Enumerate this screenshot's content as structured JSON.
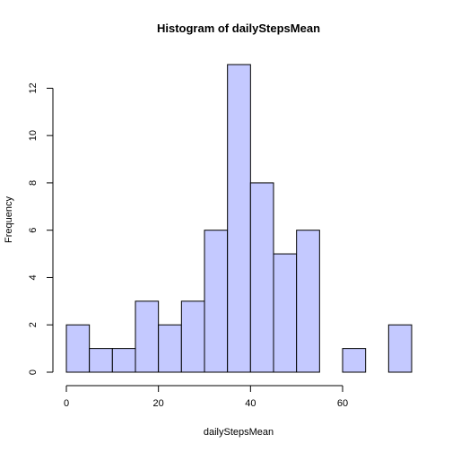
{
  "chart_data": {
    "type": "bar",
    "title": "Histogram of dailyStepsMean",
    "xlabel": "dailyStepsMean",
    "ylabel": "Frequency",
    "bins": [
      {
        "start": 0,
        "end": 5,
        "count": 2
      },
      {
        "start": 5,
        "end": 10,
        "count": 1
      },
      {
        "start": 10,
        "end": 15,
        "count": 1
      },
      {
        "start": 15,
        "end": 20,
        "count": 3
      },
      {
        "start": 20,
        "end": 25,
        "count": 2
      },
      {
        "start": 25,
        "end": 30,
        "count": 3
      },
      {
        "start": 30,
        "end": 35,
        "count": 6
      },
      {
        "start": 35,
        "end": 40,
        "count": 13
      },
      {
        "start": 40,
        "end": 45,
        "count": 8
      },
      {
        "start": 45,
        "end": 50,
        "count": 5
      },
      {
        "start": 50,
        "end": 55,
        "count": 6
      },
      {
        "start": 55,
        "end": 60,
        "count": 0
      },
      {
        "start": 60,
        "end": 65,
        "count": 1
      },
      {
        "start": 65,
        "end": 70,
        "count": 0
      },
      {
        "start": 70,
        "end": 75,
        "count": 2
      }
    ],
    "xticks": [
      0,
      20,
      40,
      60
    ],
    "yticks": [
      0,
      2,
      4,
      6,
      8,
      10,
      12
    ],
    "xlim": [
      0,
      75
    ],
    "ylim": [
      0,
      13
    ],
    "bar_color": "#c4c9ff",
    "grid": false
  }
}
